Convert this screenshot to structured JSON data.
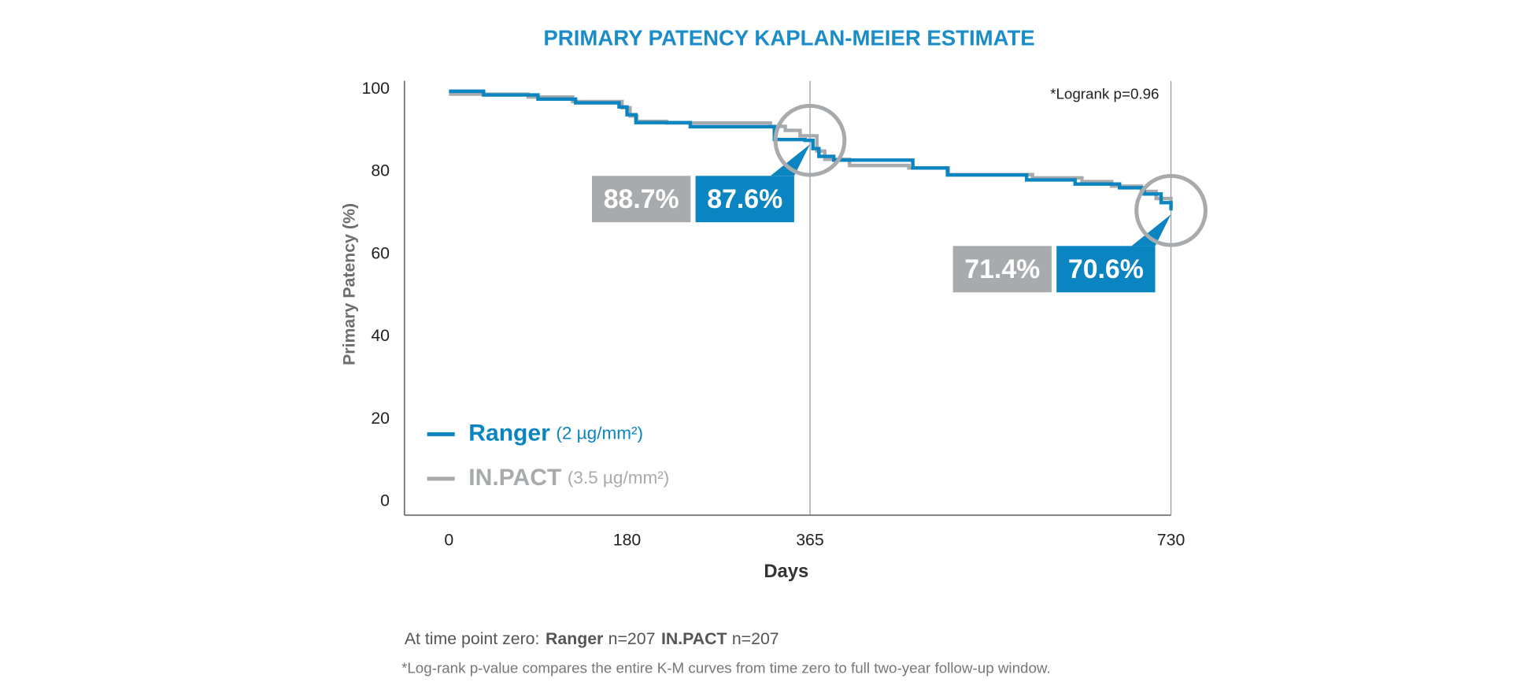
{
  "chart_data": {
    "type": "step",
    "title": "PRIMARY PATENCY KAPLAN-MEIER ESTIMATE",
    "x_label": "Days",
    "y_label": "Primary Patency (%)",
    "annotation": "*Logrank p=0.96",
    "xlim": [
      -45,
      730
    ],
    "xticks": [
      0,
      180,
      365,
      730
    ],
    "ylim": [
      -3.3,
      102
    ],
    "yticks": [
      0,
      20,
      40,
      60,
      80,
      100
    ],
    "series": [
      {
        "name": "Ranger",
        "dose": "(2 µg/mm²)",
        "color": "#0a85c2",
        "n": 207,
        "n_label": "n=207",
        "x": [
          0,
          35,
          90,
          128,
          172,
          180,
          189,
          244,
          329,
          360,
          368,
          374,
          389,
          469,
          504,
          584,
          633,
          678,
          703,
          720,
          730
        ],
        "values": [
          99.5,
          98.6,
          97.6,
          96.7,
          95.7,
          93.8,
          91.9,
          90.9,
          87.8,
          87.6,
          85.6,
          83.7,
          82.8,
          80.9,
          79.2,
          78,
          77,
          76.1,
          74.6,
          72.5,
          70.6
        ]
      },
      {
        "name": "IN.PACT",
        "dose": "(3.5 µg/mm²)",
        "color": "#a8abad",
        "n": 207,
        "n_label": "n=207",
        "x": [
          0,
          80,
          125,
          175,
          183,
          190,
          220,
          325,
          340,
          355,
          372,
          380,
          405,
          465,
          505,
          590,
          640,
          670,
          700,
          715,
          730
        ],
        "values": [
          98.8,
          98.1,
          97,
          95.5,
          93.5,
          92.2,
          91.8,
          91,
          90,
          88.7,
          85,
          83,
          81.5,
          80.9,
          79.3,
          78.5,
          77.6,
          76.5,
          75.2,
          73.5,
          71.4
        ]
      }
    ],
    "callouts": [
      {
        "x": 365,
        "values": [
          88.7,
          87.6
        ],
        "value_labels": [
          "88.7%",
          "87.6%"
        ]
      },
      {
        "x": 730,
        "values": [
          71.4,
          70.6
        ],
        "value_labels": [
          "71.4%",
          "70.6%"
        ]
      }
    ],
    "footer": {
      "prefix": "At time point zero:",
      "note": "*Log-rank p-value compares the entire K-M curves from time zero to full two-year follow-up window."
    }
  }
}
